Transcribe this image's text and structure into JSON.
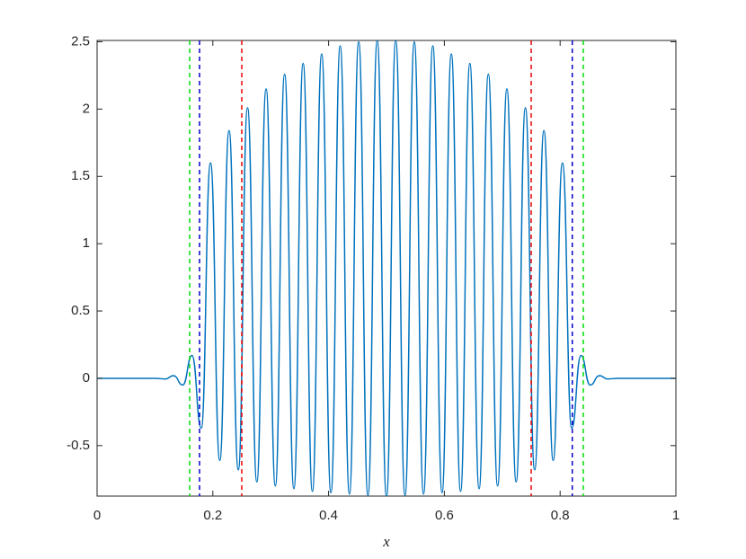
{
  "chart_data": {
    "type": "line",
    "xlabel": "x",
    "x": [
      0,
      0.1,
      0.118,
      0.132,
      0.148,
      0.164,
      0.18,
      0.196,
      0.212,
      0.228,
      0.244,
      0.26,
      0.276,
      0.292,
      0.308,
      0.324,
      0.34,
      0.356,
      0.372,
      0.388,
      0.404,
      0.42,
      0.436,
      0.452,
      0.468,
      0.484,
      0.5,
      0.516,
      0.532,
      0.548,
      0.564,
      0.58,
      0.596,
      0.612,
      0.628,
      0.644,
      0.66,
      0.676,
      0.692,
      0.708,
      0.724,
      0.74,
      0.756,
      0.772,
      0.788,
      0.804,
      0.82,
      0.836,
      0.852,
      0.868,
      0.882,
      0.9,
      1
    ],
    "series": [
      {
        "color": "#0072bd",
        "values": [
          0,
          0,
          -0.005,
          0.02,
          -0.05,
          0.17,
          -0.37,
          1.6,
          -0.61,
          1.84,
          -0.68,
          2.01,
          -0.77,
          2.15,
          -0.8,
          2.26,
          -0.82,
          2.34,
          -0.84,
          2.41,
          -0.85,
          2.47,
          -0.86,
          2.5,
          -0.87,
          2.51,
          -0.88,
          2.51,
          -0.87,
          2.5,
          -0.86,
          2.47,
          -0.85,
          2.41,
          -0.84,
          2.34,
          -0.82,
          2.26,
          -0.8,
          2.15,
          -0.77,
          2.01,
          -0.68,
          1.84,
          -0.61,
          1.6,
          -0.37,
          0.17,
          -0.05,
          0.02,
          -0.005,
          0,
          0
        ]
      }
    ],
    "reference_lines": [
      {
        "x": 0.16,
        "color": "#00dd00"
      },
      {
        "x": 0.177,
        "color": "#0000cc"
      },
      {
        "x": 0.25,
        "color": "#ee0000"
      },
      {
        "x": 0.75,
        "color": "#ee0000"
      },
      {
        "x": 0.821,
        "color": "#0000cc"
      },
      {
        "x": 0.84,
        "color": "#00dd00"
      }
    ],
    "xlim": [
      0,
      1
    ],
    "ylim": [
      -0.875,
      2.51
    ],
    "xticks": [
      0,
      0.2,
      0.4,
      0.6,
      0.8,
      1
    ],
    "yticks": [
      -0.5,
      0,
      0.5,
      1,
      1.5,
      2,
      2.5
    ],
    "grid": false
  }
}
